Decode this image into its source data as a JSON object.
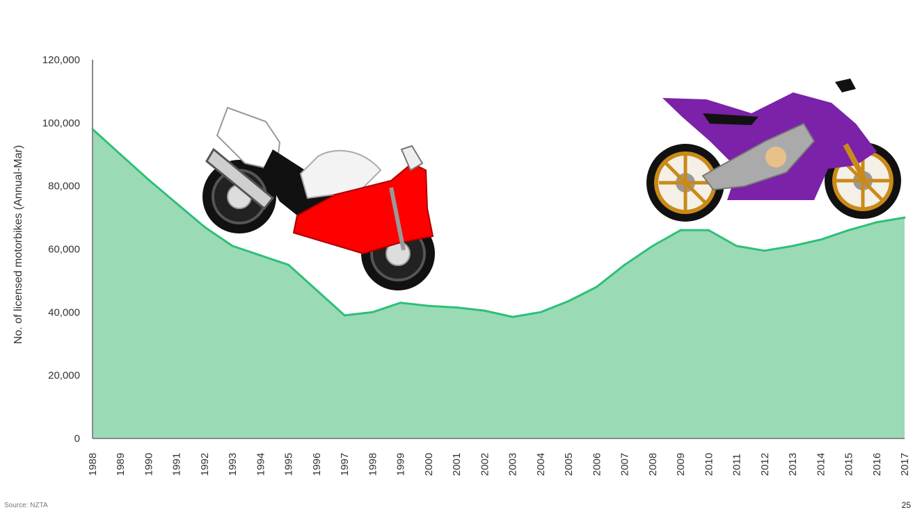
{
  "chart_data": {
    "type": "area",
    "title": "",
    "xlabel": "",
    "ylabel": "No. of licensed motorbikes (Annual-Mar)",
    "ylim": [
      0,
      120000
    ],
    "yticks": [
      0,
      20000,
      40000,
      60000,
      80000,
      100000,
      120000
    ],
    "ytick_labels": [
      "0",
      "20,000",
      "40,000",
      "60,000",
      "80,000",
      "100,000",
      "120,000"
    ],
    "x": [
      "1988",
      "1989",
      "1990",
      "1991",
      "1992",
      "1993",
      "1994",
      "1995",
      "1996",
      "1997",
      "1998",
      "1999",
      "2000",
      "2001",
      "2002",
      "2003",
      "2004",
      "2005",
      "2006",
      "2007",
      "2008",
      "2009",
      "2010",
      "2011",
      "2012",
      "2013",
      "2014",
      "2015",
      "2016",
      "2017"
    ],
    "values": [
      98000,
      90000,
      82000,
      74500,
      67000,
      61000,
      58000,
      55000,
      47000,
      39000,
      40000,
      43000,
      42000,
      41500,
      40500,
      38500,
      40000,
      43500,
      48000,
      55000,
      61000,
      66000,
      66000,
      61000,
      59500,
      61000,
      63000,
      66000,
      68500,
      70000
    ],
    "grid": false,
    "colors": {
      "fill": "#9adbb5",
      "line": "#2ebf78",
      "axis": "#888888"
    }
  },
  "footer": {
    "source": "Source: NZTA",
    "page_number": "25"
  },
  "illustrations": {
    "left": "red-white-motorbike-icon",
    "right": "purple-motorbike-icon"
  }
}
